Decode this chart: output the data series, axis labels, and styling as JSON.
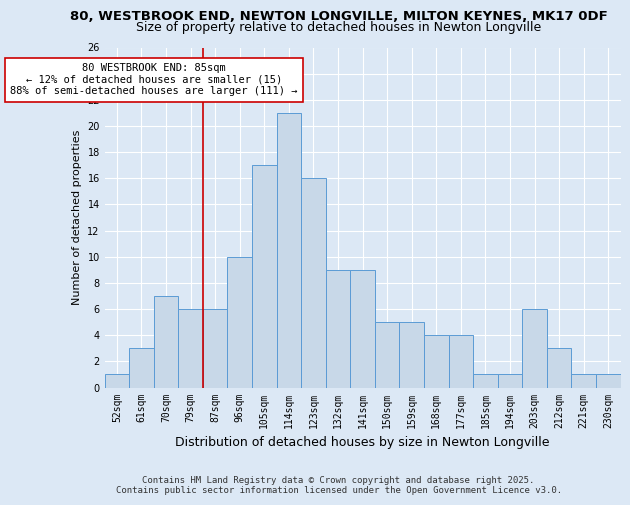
{
  "title1": "80, WESTBROOK END, NEWTON LONGVILLE, MILTON KEYNES, MK17 0DF",
  "title2": "Size of property relative to detached houses in Newton Longville",
  "xlabel": "Distribution of detached houses by size in Newton Longville",
  "ylabel": "Number of detached properties",
  "categories": [
    "52sqm",
    "61sqm",
    "70sqm",
    "79sqm",
    "87sqm",
    "96sqm",
    "105sqm",
    "114sqm",
    "123sqm",
    "132sqm",
    "141sqm",
    "150sqm",
    "159sqm",
    "168sqm",
    "177sqm",
    "185sqm",
    "194sqm",
    "203sqm",
    "212sqm",
    "221sqm",
    "230sqm"
  ],
  "values": [
    1,
    3,
    7,
    6,
    6,
    10,
    17,
    21,
    16,
    9,
    9,
    5,
    5,
    4,
    4,
    1,
    1,
    6,
    3,
    1,
    1
  ],
  "bar_color": "#c8d8e8",
  "bar_edge_color": "#5b9bd5",
  "background_color": "#dce8f5",
  "grid_color": "#ffffff",
  "vline_x_index": 4,
  "vline_color": "#cc0000",
  "annotation_text": "80 WESTBROOK END: 85sqm\n← 12% of detached houses are smaller (15)\n88% of semi-detached houses are larger (111) →",
  "annotation_box_color": "#ffffff",
  "annotation_box_edge": "#cc0000",
  "ylim": [
    0,
    26
  ],
  "yticks": [
    0,
    2,
    4,
    6,
    8,
    10,
    12,
    14,
    16,
    18,
    20,
    22,
    24,
    26
  ],
  "footer_text": "Contains HM Land Registry data © Crown copyright and database right 2025.\nContains public sector information licensed under the Open Government Licence v3.0.",
  "title1_fontsize": 9.5,
  "title2_fontsize": 9,
  "xlabel_fontsize": 9,
  "ylabel_fontsize": 8,
  "tick_fontsize": 7,
  "annotation_fontsize": 7.5,
  "footer_fontsize": 6.5
}
